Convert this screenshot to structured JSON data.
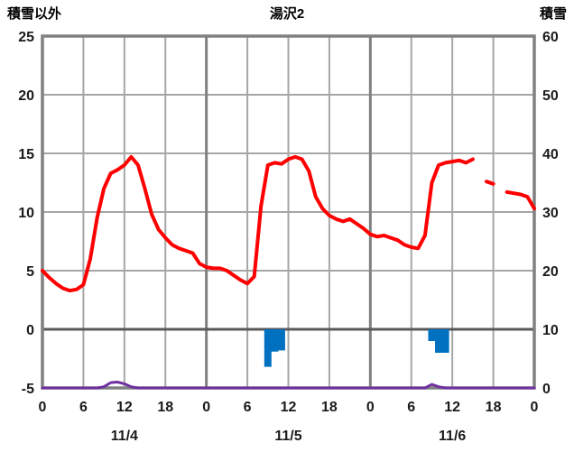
{
  "header": {
    "left_axis_title": "積雪以外",
    "chart_title": "湯沢2",
    "right_axis_title": "積雪"
  },
  "chart_data": {
    "type": "line",
    "title": "湯沢2",
    "grid": true,
    "left_axis": {
      "label": "積雪以外",
      "min": -5,
      "max": 25,
      "ticks": [
        25,
        20,
        15,
        10,
        5,
        0,
        -5
      ]
    },
    "right_axis": {
      "label": "積雪",
      "min": 0,
      "max": 60,
      "ticks": [
        60,
        50,
        40,
        30,
        20,
        10,
        0
      ]
    },
    "x_axis": {
      "min_hour": 0,
      "max_hour": 72,
      "tick_interval_hours": 6,
      "tick_labels": [
        "0",
        "6",
        "12",
        "18",
        "0",
        "6",
        "12",
        "18",
        "0",
        "6",
        "12",
        "18",
        "0"
      ],
      "day_labels": [
        {
          "label": "11/4",
          "hour": 12
        },
        {
          "label": "11/5",
          "hour": 36
        },
        {
          "label": "11/6",
          "hour": 60
        }
      ],
      "day_boundaries": [
        24,
        48
      ]
    },
    "series": [
      {
        "name": "temperature-line",
        "type": "line",
        "axis": "left",
        "color": "#FF0000",
        "width": 4,
        "start_hour": 0,
        "step": 1,
        "values": [
          5.0,
          4.4,
          3.9,
          3.5,
          3.3,
          3.4,
          3.8,
          6.0,
          9.5,
          12.0,
          13.3,
          13.6,
          14.0,
          14.7,
          14.0,
          12.0,
          9.8,
          8.5,
          7.8,
          7.2,
          6.9,
          6.7,
          6.5,
          5.6,
          5.3,
          5.2,
          5.2,
          5.0,
          4.6,
          4.2,
          3.9,
          4.5,
          10.5,
          14.0,
          14.2,
          14.1,
          14.5,
          14.7,
          14.5,
          13.5,
          11.3,
          10.3,
          9.7,
          9.4,
          9.2,
          9.4,
          9.0,
          8.6,
          8.1,
          7.9,
          8.0,
          7.8,
          7.6,
          7.2,
          7.0,
          6.9,
          8.0,
          12.5,
          14.0,
          14.2,
          14.3,
          14.4,
          14.2,
          14.5,
          null,
          12.6,
          12.4,
          null,
          11.7,
          11.6,
          11.5,
          11.3,
          10.3
        ]
      },
      {
        "name": "precipitation-bars",
        "type": "bar",
        "axis": "left",
        "color": "#0070C0",
        "bars": [
          {
            "hour": 33,
            "value": -3.2
          },
          {
            "hour": 34,
            "value": -1.9
          },
          {
            "hour": 35,
            "value": -1.8
          },
          {
            "hour": 57,
            "value": -1.0
          },
          {
            "hour": 58,
            "value": -2.0
          },
          {
            "hour": 59,
            "value": -2.0
          }
        ]
      },
      {
        "name": "snow-depth-line",
        "type": "line",
        "axis": "right",
        "color": "#7030A0",
        "width": 3,
        "start_hour": 0,
        "step": 1,
        "values": [
          0,
          0,
          0,
          0,
          0,
          0,
          0,
          0,
          0,
          0.2,
          0.9,
          1,
          0.7,
          0.2,
          0,
          0,
          0,
          0,
          0,
          0,
          0,
          0,
          0,
          0,
          0,
          0,
          0,
          0,
          0,
          0,
          0,
          0,
          0,
          0,
          0,
          0,
          0,
          0,
          0,
          0,
          0,
          0,
          0,
          0,
          0,
          0,
          0,
          0,
          0,
          0,
          0,
          0,
          0,
          0,
          0,
          0,
          0,
          0.6,
          0.2,
          0,
          0,
          0,
          0,
          0,
          0,
          0,
          0,
          0,
          0,
          0,
          0,
          0,
          0
        ]
      }
    ],
    "style": {
      "grid_color": "#a6a6a6",
      "border_color": "#808080",
      "zero_line_color": "#595959",
      "tick_label_color": "#1a1a1a"
    }
  }
}
